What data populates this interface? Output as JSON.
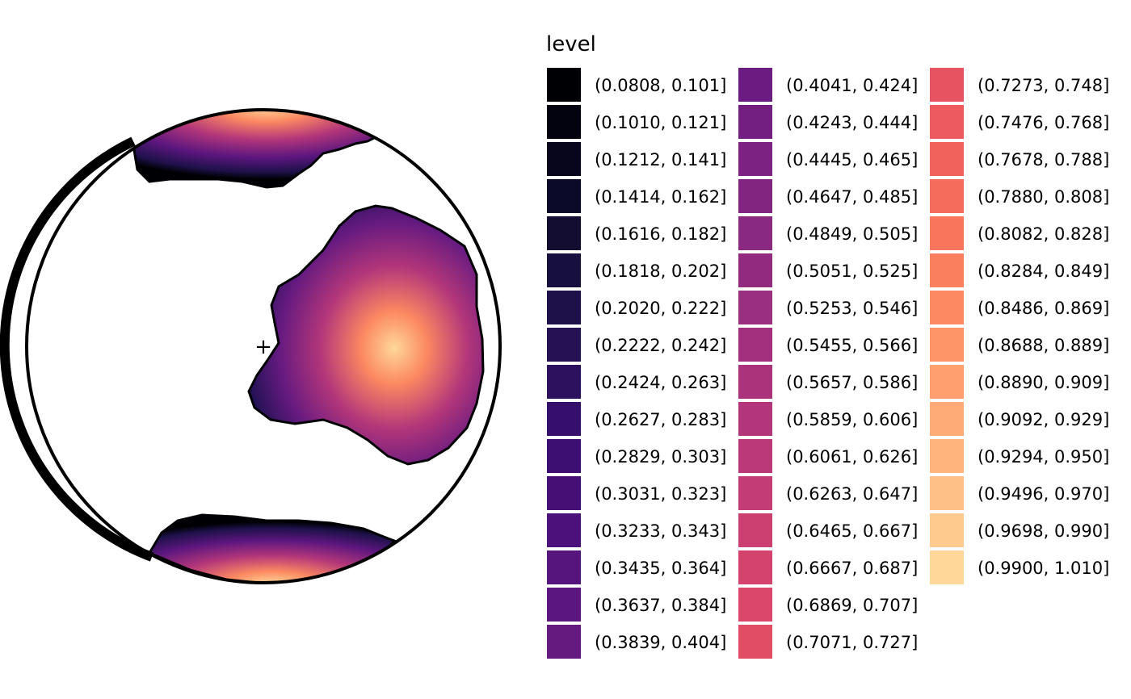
{
  "chart_data": {
    "type": "contour",
    "projection": "polar",
    "center_marker": "+",
    "legend": {
      "title": "level",
      "placement": "right",
      "columns": 3,
      "entries": [
        {
          "label": "(0.0808, 0.101]",
          "color": "#000004"
        },
        {
          "label": "(0.1010, 0.121]",
          "color": "#03030f"
        },
        {
          "label": "(0.1212, 0.141]",
          "color": "#07061c"
        },
        {
          "label": "(0.1414, 0.162]",
          "color": "#0c0a29"
        },
        {
          "label": "(0.1616, 0.182]",
          "color": "#120d31"
        },
        {
          "label": "(0.1818, 0.202]",
          "color": "#17103f"
        },
        {
          "label": "(0.2020, 0.222]",
          "color": "#1e1149"
        },
        {
          "label": "(0.2222, 0.242]",
          "color": "#251255"
        },
        {
          "label": "(0.2424, 0.263]",
          "color": "#2d115f"
        },
        {
          "label": "(0.2627, 0.283]",
          "color": "#350f6b"
        },
        {
          "label": "(0.2829, 0.303]",
          "color": "#3e0f72"
        },
        {
          "label": "(0.3031, 0.323]",
          "color": "#450f76"
        },
        {
          "label": "(0.3233, 0.343]",
          "color": "#4d117b"
        },
        {
          "label": "(0.3435, 0.364]",
          "color": "#56147d"
        },
        {
          "label": "(0.3637, 0.384]",
          "color": "#5c167f"
        },
        {
          "label": "(0.3839, 0.404]",
          "color": "#651a80"
        },
        {
          "label": "(0.4041, 0.424]",
          "color": "#6b1c81"
        },
        {
          "label": "(0.4243, 0.444]",
          "color": "#731f81"
        },
        {
          "label": "(0.4445, 0.465]",
          "color": "#7b2282"
        },
        {
          "label": "(0.4647, 0.485]",
          "color": "#822581"
        },
        {
          "label": "(0.4849, 0.505]",
          "color": "#8a2981"
        },
        {
          "label": "(0.5051, 0.525]",
          "color": "#922b80"
        },
        {
          "label": "(0.5253, 0.546]",
          "color": "#9a2e7f"
        },
        {
          "label": "(0.5455, 0.566]",
          "color": "#a3307e"
        },
        {
          "label": "(0.5657, 0.586]",
          "color": "#ab337c"
        },
        {
          "label": "(0.5859, 0.606]",
          "color": "#b3367a"
        },
        {
          "label": "(0.6061, 0.626]",
          "color": "#bb3978"
        },
        {
          "label": "(0.6263, 0.647]",
          "color": "#c43c75"
        },
        {
          "label": "(0.6465, 0.667]",
          "color": "#cc3f71"
        },
        {
          "label": "(0.6667, 0.687]",
          "color": "#d3436e"
        },
        {
          "label": "(0.6869, 0.707]",
          "color": "#db476a"
        },
        {
          "label": "(0.7071, 0.727]",
          "color": "#e24d66"
        },
        {
          "label": "(0.7273, 0.748]",
          "color": "#e85362"
        },
        {
          "label": "(0.7476, 0.768]",
          "color": "#ee5b5e"
        },
        {
          "label": "(0.7678, 0.788]",
          "color": "#f2625d"
        },
        {
          "label": "(0.7880, 0.808]",
          "color": "#f56b5c"
        },
        {
          "label": "(0.8082, 0.828]",
          "color": "#f8765c"
        },
        {
          "label": "(0.8284, 0.849]",
          "color": "#fa7f5e"
        },
        {
          "label": "(0.8486, 0.869]",
          "color": "#fc8961"
        },
        {
          "label": "(0.8688, 0.889]",
          "color": "#fd9567"
        },
        {
          "label": "(0.8890, 0.909]",
          "color": "#fe9f6d"
        },
        {
          "label": "(0.9092, 0.929]",
          "color": "#feab75"
        },
        {
          "label": "(0.9294, 0.950]",
          "color": "#feb47b"
        },
        {
          "label": "(0.9496, 0.970]",
          "color": "#fec086"
        },
        {
          "label": "(0.9698, 0.990]",
          "color": "#feca8d"
        },
        {
          "label": "(0.9900, 1.010]",
          "color": "#fed799"
        }
      ]
    }
  }
}
